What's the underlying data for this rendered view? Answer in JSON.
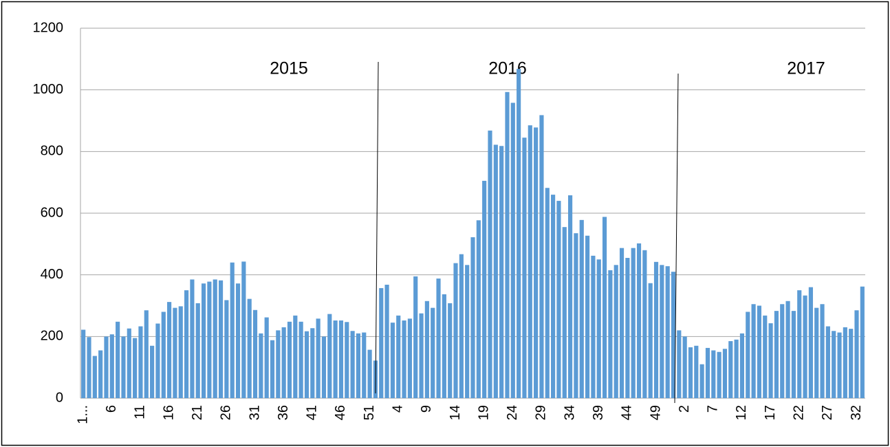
{
  "chart_data": {
    "type": "bar",
    "categories": [
      "1...",
      null,
      null,
      null,
      null,
      "6",
      null,
      null,
      null,
      null,
      "11",
      null,
      null,
      null,
      null,
      "16",
      null,
      null,
      null,
      null,
      "21",
      null,
      null,
      null,
      null,
      "26",
      null,
      null,
      null,
      null,
      "31",
      null,
      null,
      null,
      null,
      "36",
      null,
      null,
      null,
      null,
      "41",
      null,
      null,
      null,
      null,
      "46",
      null,
      null,
      null,
      null,
      "51",
      null,
      null,
      null,
      null,
      "4",
      null,
      null,
      null,
      null,
      "9",
      null,
      null,
      null,
      null,
      "14",
      null,
      null,
      null,
      null,
      "19",
      null,
      null,
      null,
      null,
      "24",
      null,
      null,
      null,
      null,
      "29",
      null,
      null,
      null,
      null,
      "34",
      null,
      null,
      null,
      null,
      "39",
      null,
      null,
      null,
      null,
      "44",
      null,
      null,
      null,
      null,
      "49",
      null,
      null,
      null,
      null,
      "2",
      null,
      null,
      null,
      null,
      "7",
      null,
      null,
      null,
      null,
      "12",
      null,
      null,
      null,
      null,
      "17",
      null,
      null,
      null,
      null,
      "22",
      null,
      null,
      null,
      null,
      "27",
      null,
      null,
      null,
      null,
      "32",
      null
    ],
    "values": [
      222,
      198,
      137,
      155,
      200,
      207,
      248,
      200,
      226,
      195,
      233,
      285,
      170,
      242,
      280,
      312,
      293,
      298,
      350,
      385,
      308,
      372,
      378,
      385,
      382,
      318,
      440,
      372,
      443,
      322,
      286,
      210,
      262,
      188,
      220,
      230,
      248,
      268,
      248,
      217,
      227,
      258,
      200,
      273,
      252,
      252,
      247,
      218,
      210,
      213,
      157,
      122,
      357,
      368,
      245,
      268,
      252,
      258,
      395,
      275,
      315,
      293,
      388,
      337,
      308,
      438,
      467,
      432,
      522,
      577,
      705,
      868,
      822,
      818,
      993,
      958,
      1068,
      845,
      885,
      878,
      918,
      682,
      660,
      640,
      555,
      658,
      535,
      578,
      527,
      462,
      450,
      588,
      415,
      432,
      487,
      455,
      487,
      502,
      480,
      373,
      442,
      432,
      428,
      410,
      220,
      200,
      165,
      170,
      110,
      163,
      155,
      150,
      160,
      185,
      190,
      210,
      280,
      305,
      300,
      268,
      243,
      283,
      305,
      315,
      283,
      350,
      333,
      360,
      293,
      305,
      233,
      218,
      213,
      230,
      225,
      285,
      362
    ],
    "color": "#5b9bd5",
    "ylim": [
      0,
      1200
    ],
    "yticks": [
      0,
      200,
      400,
      600,
      800,
      1000,
      1200
    ],
    "grid": true,
    "annotations": [
      "2015",
      "2016",
      "2017"
    ]
  }
}
